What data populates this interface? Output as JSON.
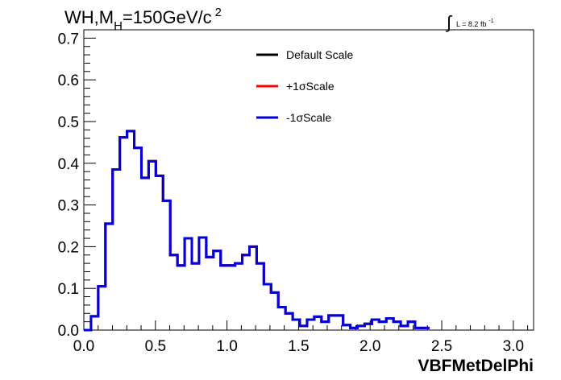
{
  "chart_data": {
    "type": "histogram-step",
    "title": {
      "main": "WH,M",
      "sub": "H",
      "rest": "=150GeV/c",
      "sup": "2"
    },
    "lumi": {
      "symbol": "∫",
      "text": "L = 8.2 fb",
      "sup": "-1"
    },
    "xlabel": "VBFMetDelPhi",
    "ylabel": "",
    "xlim": [
      0.0,
      3.1416
    ],
    "ylim": [
      0.0,
      0.72
    ],
    "x_ticks": [
      "0.0",
      "0.5",
      "1.0",
      "1.5",
      "2.0",
      "2.5",
      "3.0"
    ],
    "y_ticks": [
      "0.0",
      "0.1",
      "0.2",
      "0.3",
      "0.4",
      "0.5",
      "0.6",
      "0.7"
    ],
    "legend_placement": "top-center",
    "grid": false,
    "bin_edges_start": 0.0,
    "bin_width": 0.0503,
    "series": [
      {
        "name": "Default Scale",
        "color": "#000000",
        "values": [
          0.0,
          0.033,
          0.105,
          0.255,
          0.385,
          0.462,
          0.477,
          0.437,
          0.365,
          0.405,
          0.37,
          0.31,
          0.18,
          0.155,
          0.22,
          0.16,
          0.222,
          0.175,
          0.19,
          0.155,
          0.155,
          0.16,
          0.18,
          0.2,
          0.16,
          0.11,
          0.09,
          0.055,
          0.04,
          0.025,
          0.01,
          0.025,
          0.032,
          0.02,
          0.035,
          0.035,
          0.012,
          0.005,
          0.01,
          0.015,
          0.025,
          0.02,
          0.028,
          0.02,
          0.01,
          0.02,
          0.005,
          0.005
        ]
      },
      {
        "name": "+1σScale",
        "color": "#ff0000",
        "values": [
          0.0,
          0.033,
          0.105,
          0.255,
          0.385,
          0.462,
          0.477,
          0.437,
          0.365,
          0.405,
          0.37,
          0.31,
          0.18,
          0.155,
          0.22,
          0.16,
          0.222,
          0.175,
          0.19,
          0.155,
          0.155,
          0.16,
          0.18,
          0.2,
          0.16,
          0.11,
          0.09,
          0.055,
          0.04,
          0.025,
          0.01,
          0.025,
          0.032,
          0.02,
          0.035,
          0.035,
          0.012,
          0.005,
          0.01,
          0.015,
          0.025,
          0.02,
          0.028,
          0.02,
          0.01,
          0.02,
          0.005,
          0.005
        ]
      },
      {
        "name": "-1σScale",
        "color": "#0000dd",
        "values": [
          0.0,
          0.033,
          0.105,
          0.255,
          0.385,
          0.462,
          0.477,
          0.437,
          0.365,
          0.405,
          0.37,
          0.31,
          0.18,
          0.155,
          0.22,
          0.16,
          0.222,
          0.175,
          0.19,
          0.155,
          0.155,
          0.16,
          0.18,
          0.2,
          0.16,
          0.11,
          0.09,
          0.055,
          0.04,
          0.025,
          0.01,
          0.025,
          0.032,
          0.02,
          0.035,
          0.035,
          0.012,
          0.005,
          0.01,
          0.015,
          0.025,
          0.02,
          0.028,
          0.02,
          0.01,
          0.02,
          0.005,
          0.005
        ]
      }
    ]
  }
}
